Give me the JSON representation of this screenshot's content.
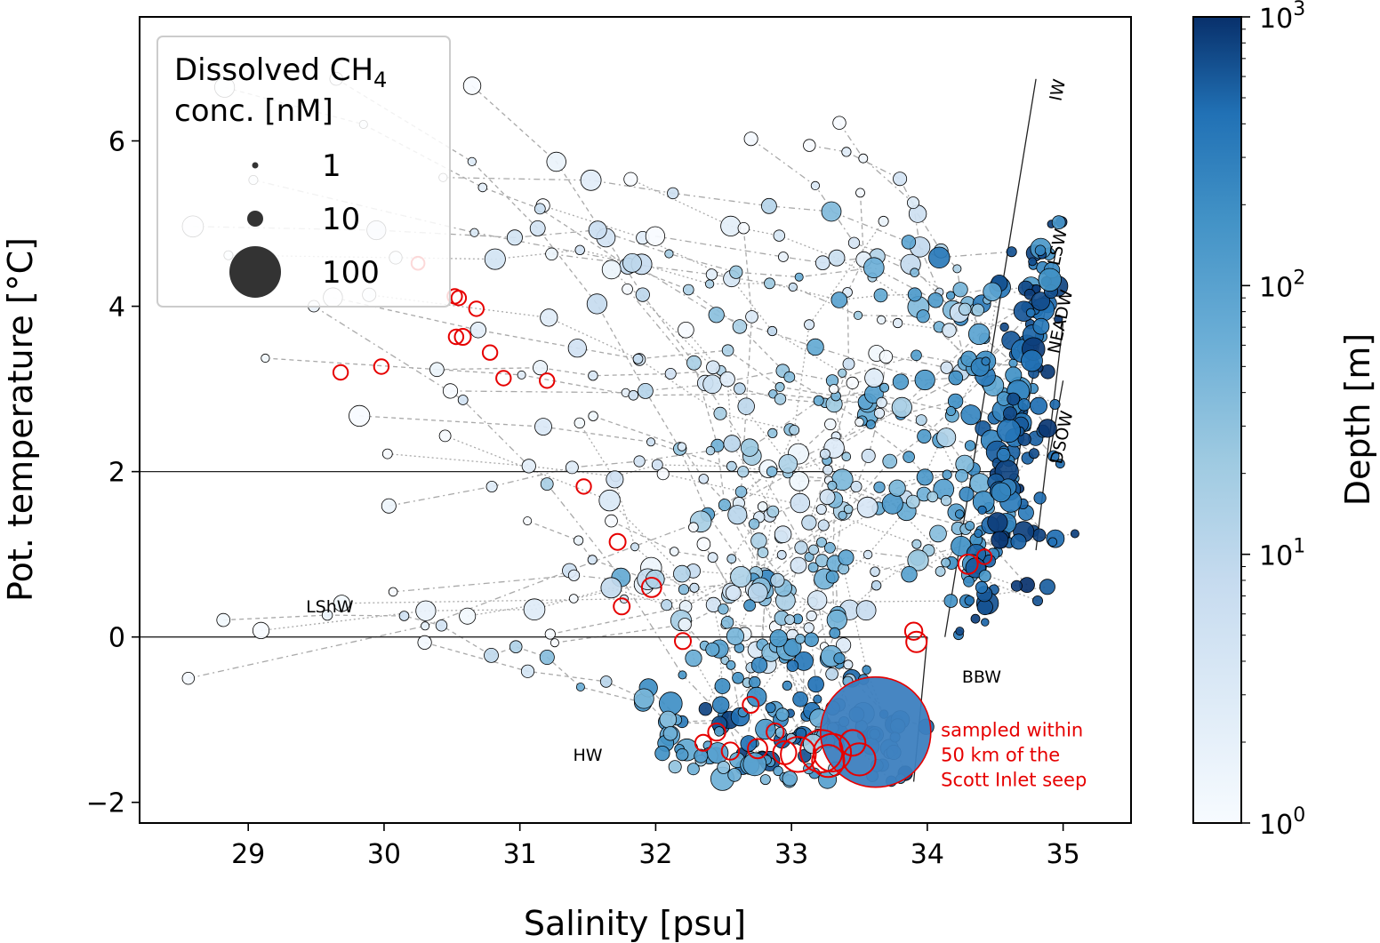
{
  "chart_data": {
    "type": "scatter",
    "xlabel": "Salinity [psu]",
    "ylabel": "Pot. temperature [°C]",
    "xlim": [
      28.2,
      35.5
    ],
    "ylim": [
      -2.25,
      7.5
    ],
    "x_ticks": [
      29,
      30,
      31,
      32,
      33,
      34,
      35
    ],
    "y_ticks": [
      -2,
      0,
      2,
      4,
      6
    ],
    "grid": false,
    "legend": {
      "placement": "top-left",
      "title_line1": "Dissolved CH",
      "title_sub": "4",
      "title_line2": "conc. [nM]",
      "sizes": [
        {
          "label": "1",
          "value": 1
        },
        {
          "label": "10",
          "value": 10
        },
        {
          "label": "100",
          "value": 100
        }
      ]
    },
    "colorbar": {
      "label": "Depth [m]",
      "scale": "log",
      "range": [
        1,
        1000
      ],
      "ticks": [
        {
          "base": "10",
          "exp": "0"
        },
        {
          "base": "10",
          "exp": "1"
        },
        {
          "base": "10",
          "exp": "2"
        },
        {
          "base": "10",
          "exp": "3"
        }
      ],
      "color_low": "#f7fbff",
      "color_high": "#08306b"
    },
    "water_masses": [
      {
        "label": "LShW",
        "x": 29.6,
        "y": 0.3
      },
      {
        "label": "HW",
        "x": 31.5,
        "y": -1.5
      },
      {
        "label": "BBW",
        "x": 34.4,
        "y": -0.55
      }
    ],
    "water_mass_rotated": [
      {
        "label": "IW",
        "x": 35.0,
        "y": 6.6
      },
      {
        "label": "LSW",
        "x": 35.0,
        "y": 4.7
      },
      {
        "label": "NEADW",
        "x": 35.02,
        "y": 3.8
      },
      {
        "label": "DSOW",
        "x": 35.03,
        "y": 2.4
      }
    ],
    "boundary_lines": [
      {
        "x": [
          28.2,
          34.65
        ],
        "y": [
          2.0,
          2.0
        ]
      },
      {
        "x": [
          28.2,
          34.0
        ],
        "y": [
          0.0,
          0.0
        ]
      },
      {
        "x": [
          34.0,
          33.9
        ],
        "y": [
          0.0,
          -1.75
        ]
      },
      {
        "x": [
          34.13,
          34.8
        ],
        "y": [
          0.0,
          6.75
        ]
      },
      {
        "x": [
          34.65,
          34.95
        ],
        "y": [
          2.0,
          4.7
        ]
      },
      {
        "x": [
          34.8,
          35.0
        ],
        "y": [
          1.05,
          3.8
        ]
      },
      {
        "x": [
          34.9,
          35.0
        ],
        "y": [
          2.2,
          3.1
        ]
      }
    ],
    "annotation": {
      "lines": [
        "sampled within",
        "50 km of the",
        "Scott Inlet seep"
      ],
      "x": 34.1,
      "y": -1.2
    },
    "red_points": [
      {
        "x": 29.68,
        "y": 3.2,
        "ch4": 4
      },
      {
        "x": 29.98,
        "y": 3.27,
        "ch4": 4
      },
      {
        "x": 30.25,
        "y": 4.52,
        "ch4": 3
      },
      {
        "x": 30.52,
        "y": 4.12,
        "ch4": 4
      },
      {
        "x": 30.55,
        "y": 4.1,
        "ch4": 4
      },
      {
        "x": 30.68,
        "y": 3.97,
        "ch4": 4
      },
      {
        "x": 30.53,
        "y": 3.63,
        "ch4": 4
      },
      {
        "x": 30.58,
        "y": 3.63,
        "ch4": 5
      },
      {
        "x": 30.78,
        "y": 3.44,
        "ch4": 4
      },
      {
        "x": 30.88,
        "y": 3.13,
        "ch4": 4
      },
      {
        "x": 31.2,
        "y": 3.1,
        "ch4": 4
      },
      {
        "x": 31.47,
        "y": 1.82,
        "ch4": 4
      },
      {
        "x": 31.72,
        "y": 1.15,
        "ch4": 5
      },
      {
        "x": 31.75,
        "y": 0.37,
        "ch4": 5
      },
      {
        "x": 31.97,
        "y": 0.6,
        "ch4": 8
      },
      {
        "x": 32.2,
        "y": -0.05,
        "ch4": 5
      },
      {
        "x": 32.35,
        "y": -1.28,
        "ch4": 5
      },
      {
        "x": 32.45,
        "y": -1.15,
        "ch4": 6
      },
      {
        "x": 32.55,
        "y": -1.38,
        "ch4": 6
      },
      {
        "x": 32.7,
        "y": -0.82,
        "ch4": 5
      },
      {
        "x": 32.75,
        "y": -1.35,
        "ch4": 8
      },
      {
        "x": 32.88,
        "y": -1.15,
        "ch4": 6
      },
      {
        "x": 32.95,
        "y": -1.4,
        "ch4": 12
      },
      {
        "x": 33.05,
        "y": -1.42,
        "ch4": 30
      },
      {
        "x": 33.22,
        "y": -1.38,
        "ch4": 45
      },
      {
        "x": 33.27,
        "y": -1.5,
        "ch4": 25
      },
      {
        "x": 33.3,
        "y": -1.4,
        "ch4": 35
      },
      {
        "x": 33.5,
        "y": -1.48,
        "ch4": 25
      },
      {
        "x": 33.45,
        "y": -1.28,
        "ch4": 15
      },
      {
        "x": 33.9,
        "y": 0.07,
        "ch4": 6
      },
      {
        "x": 33.92,
        "y": -0.06,
        "ch4": 9
      },
      {
        "x": 34.3,
        "y": 0.88,
        "ch4": 8
      },
      {
        "x": 34.42,
        "y": 0.97,
        "ch4": 4
      }
    ],
    "big_point": {
      "x": 33.62,
      "y": -1.15,
      "ch4": 420,
      "depth": 120
    }
  }
}
